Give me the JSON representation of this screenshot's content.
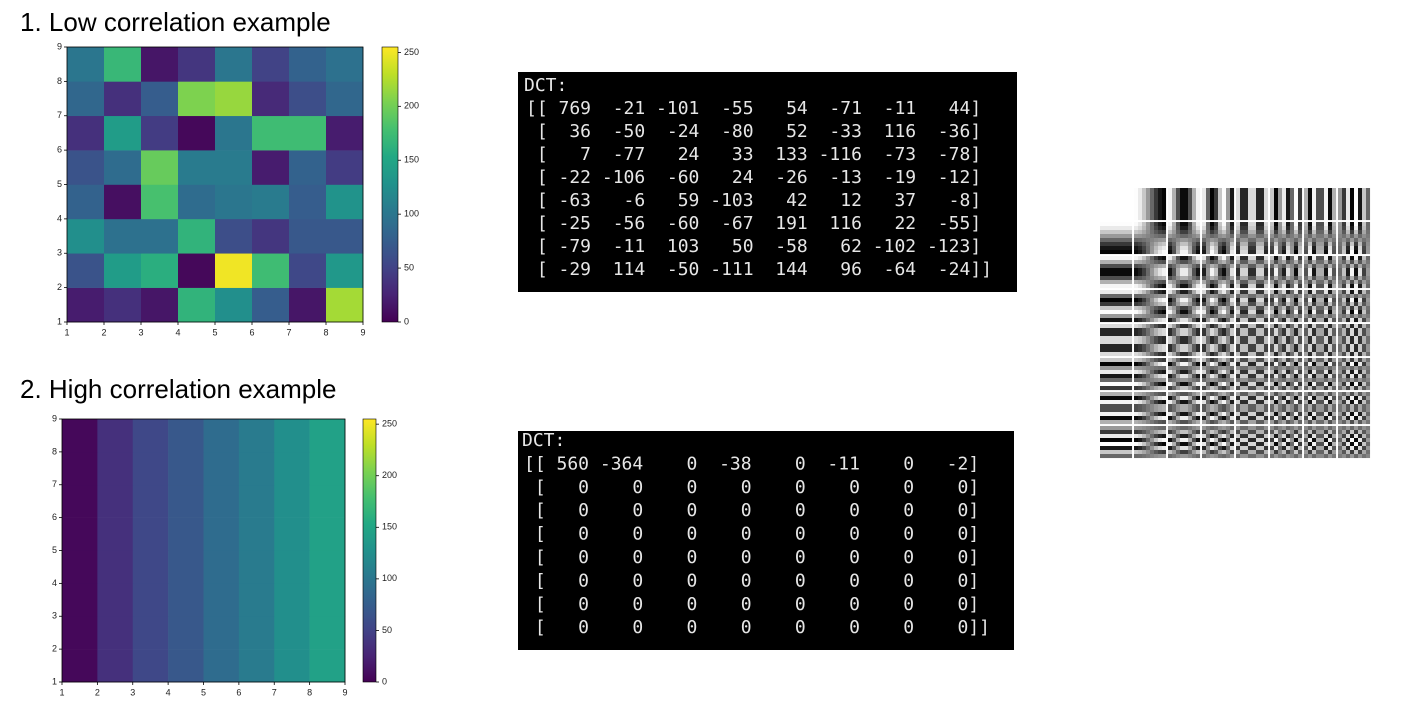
{
  "chart_data": [
    {
      "type": "heatmap",
      "title": "1. Low correlation example",
      "colormap": "viridis",
      "xlim": [
        1,
        9
      ],
      "xticks": [
        1,
        2,
        3,
        4,
        5,
        6,
        7,
        8,
        9
      ],
      "ylim": [
        1,
        9
      ],
      "yticks": [
        1,
        2,
        3,
        4,
        5,
        6,
        7,
        8,
        9
      ],
      "clim": [
        0,
        255
      ],
      "cticks": [
        0,
        50,
        100,
        150,
        200,
        250
      ],
      "z": [
        [
          20,
          35,
          15,
          165,
          125,
          75,
          15,
          220
        ],
        [
          65,
          140,
          160,
          5,
          250,
          175,
          55,
          135
        ],
        [
          125,
          95,
          95,
          165,
          60,
          40,
          70,
          70
        ],
        [
          80,
          10,
          180,
          90,
          100,
          105,
          75,
          130
        ],
        [
          65,
          90,
          195,
          105,
          105,
          20,
          80,
          45
        ],
        [
          35,
          140,
          45,
          5,
          100,
          175,
          175,
          20
        ],
        [
          85,
          35,
          75,
          205,
          215,
          30,
          60,
          85
        ],
        [
          100,
          170,
          15,
          40,
          100,
          50,
          80,
          95
        ]
      ]
    },
    {
      "type": "heatmap",
      "title": "2. High correlation example",
      "colormap": "viridis",
      "xlim": [
        1,
        9
      ],
      "xticks": [
        1,
        2,
        3,
        4,
        5,
        6,
        7,
        8,
        9
      ],
      "ylim": [
        1,
        9
      ],
      "yticks": [
        1,
        2,
        3,
        4,
        5,
        6,
        7,
        8,
        9
      ],
      "clim": [
        0,
        255
      ],
      "cticks": [
        0,
        50,
        100,
        150,
        200,
        250
      ],
      "z": [
        [
          5,
          35,
          55,
          70,
          90,
          105,
          125,
          145
        ],
        [
          5,
          35,
          55,
          70,
          90,
          105,
          125,
          145
        ],
        [
          5,
          35,
          55,
          70,
          90,
          105,
          125,
          145
        ],
        [
          5,
          35,
          55,
          70,
          90,
          105,
          125,
          145
        ],
        [
          5,
          35,
          55,
          70,
          90,
          105,
          125,
          145
        ],
        [
          5,
          35,
          55,
          70,
          90,
          105,
          125,
          145
        ],
        [
          5,
          35,
          55,
          70,
          90,
          105,
          125,
          145
        ],
        [
          5,
          35,
          55,
          70,
          90,
          105,
          125,
          145
        ]
      ]
    }
  ],
  "dct_outputs": [
    {
      "label": "DCT:",
      "lines": [
        "[[ 769  -21 -101  -55   54  -71  -11   44]",
        " [  36  -50  -24  -80   52  -33  116  -36]",
        " [   7  -77   24   33  133 -116  -73  -78]",
        " [ -22 -106  -60   24  -26  -13  -19  -12]",
        " [ -63   -6   59 -103   42   12   37   -8]",
        " [ -25  -56  -60  -67  191  116   22  -55]",
        " [ -79  -11  103   50  -58   62 -102 -123]",
        " [ -29  114  -50 -111  144   96  -64  -24]]"
      ]
    },
    {
      "label": "DCT:",
      "lines": [
        "[[ 560 -364    0  -38    0  -11    0   -2]",
        " [   0    0    0    0    0    0    0    0]",
        " [   0    0    0    0    0    0    0    0]",
        " [   0    0    0    0    0    0    0    0]",
        " [   0    0    0    0    0    0    0    0]",
        " [   0    0    0    0    0    0    0    0]",
        " [   0    0    0    0    0    0    0    0]",
        " [   0    0    0    0    0    0    0    0]]"
      ]
    }
  ]
}
